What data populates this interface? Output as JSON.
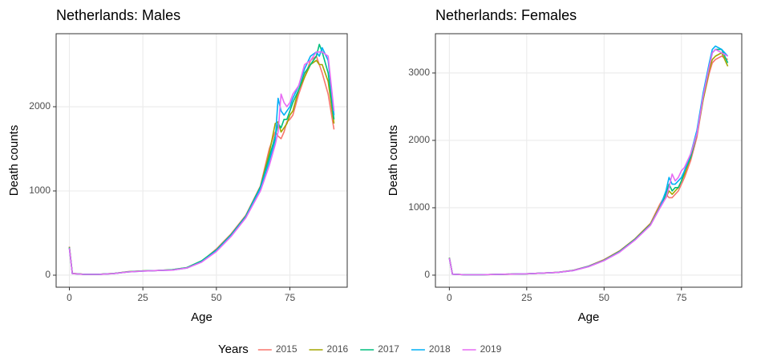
{
  "chart_data": [
    {
      "type": "line",
      "title": "Netherlands: Males",
      "x_label": "Age",
      "y_label": "Death counts",
      "legend_title": "Years",
      "x": [
        0,
        1,
        5,
        10,
        15,
        20,
        25,
        30,
        35,
        40,
        45,
        50,
        55,
        60,
        65,
        68,
        70,
        71,
        72,
        73,
        74,
        75,
        76,
        78,
        80,
        82,
        84,
        85,
        86,
        88,
        90
      ],
      "xlim": [
        -4.5,
        94.5
      ],
      "xticks": [
        0,
        25,
        50,
        75
      ],
      "ylim": [
        -143,
        2867
      ],
      "yticks": [
        0,
        1000,
        2000
      ],
      "grid": true,
      "series": [
        {
          "name": "2015",
          "color": "#F8766D",
          "values": [
            340,
            22,
            10,
            10,
            20,
            42,
            50,
            55,
            62,
            88,
            165,
            310,
            490,
            710,
            1060,
            1500,
            1700,
            1650,
            1620,
            1700,
            1820,
            1850,
            1900,
            2150,
            2350,
            2550,
            2600,
            2500,
            2400,
            2150,
            1730
          ]
        },
        {
          "name": "2016",
          "color": "#A3A500",
          "values": [
            330,
            20,
            10,
            10,
            20,
            40,
            50,
            55,
            65,
            90,
            170,
            300,
            480,
            700,
            1050,
            1450,
            1800,
            1820,
            1700,
            1750,
            1800,
            1900,
            1950,
            2200,
            2350,
            2500,
            2550,
            2500,
            2500,
            2300,
            1800
          ]
        },
        {
          "name": "2017",
          "color": "#00BF7D",
          "values": [
            330,
            20,
            10,
            10,
            20,
            40,
            50,
            55,
            65,
            90,
            170,
            300,
            480,
            700,
            1050,
            1400,
            1650,
            1800,
            1750,
            1850,
            1850,
            1950,
            2050,
            2200,
            2400,
            2500,
            2600,
            2740,
            2650,
            2400,
            1850
          ]
        },
        {
          "name": "2018",
          "color": "#00B0F6",
          "values": [
            320,
            18,
            9,
            9,
            18,
            38,
            48,
            55,
            60,
            85,
            160,
            290,
            470,
            690,
            1030,
            1350,
            1600,
            2100,
            1950,
            1900,
            1950,
            2000,
            2100,
            2250,
            2450,
            2600,
            2650,
            2600,
            2700,
            2550,
            1900
          ]
        },
        {
          "name": "2019",
          "color": "#E76BF3",
          "values": [
            320,
            18,
            9,
            9,
            18,
            38,
            48,
            55,
            60,
            85,
            155,
            280,
            460,
            680,
            1000,
            1300,
            1550,
            1700,
            2150,
            2050,
            2000,
            2050,
            2150,
            2250,
            2500,
            2550,
            2650,
            2650,
            2650,
            2600,
            1950
          ]
        }
      ]
    },
    {
      "type": "line",
      "title": "Netherlands: Females",
      "x_label": "Age",
      "y_label": "Death counts",
      "x": [
        0,
        1,
        5,
        10,
        15,
        20,
        25,
        30,
        35,
        40,
        45,
        50,
        55,
        60,
        65,
        68,
        70,
        71,
        72,
        73,
        74,
        75,
        76,
        78,
        80,
        82,
        84,
        85,
        86,
        88,
        90
      ],
      "xlim": [
        -4.5,
        94.5
      ],
      "xticks": [
        0,
        25,
        50,
        75
      ],
      "ylim": [
        -179,
        3583
      ],
      "yticks": [
        0,
        1000,
        2000,
        3000
      ],
      "grid": true,
      "series": [
        {
          "name": "2015",
          "color": "#F8766D",
          "values": [
            260,
            15,
            5,
            5,
            10,
            15,
            20,
            30,
            42,
            72,
            135,
            230,
            360,
            540,
            770,
            1050,
            1200,
            1150,
            1150,
            1200,
            1250,
            1350,
            1450,
            1700,
            2050,
            2600,
            3000,
            3150,
            3200,
            3250,
            3200
          ]
        },
        {
          "name": "2016",
          "color": "#A3A500",
          "values": [
            255,
            15,
            5,
            5,
            10,
            15,
            20,
            30,
            40,
            70,
            130,
            225,
            355,
            535,
            760,
            1020,
            1150,
            1250,
            1200,
            1250,
            1300,
            1400,
            1500,
            1750,
            2100,
            2600,
            3050,
            3200,
            3250,
            3300,
            3100
          ]
        },
        {
          "name": "2017",
          "color": "#00BF7D",
          "values": [
            255,
            15,
            5,
            5,
            10,
            15,
            20,
            30,
            40,
            70,
            130,
            220,
            350,
            530,
            750,
            1000,
            1200,
            1350,
            1250,
            1300,
            1300,
            1400,
            1550,
            1750,
            2100,
            2650,
            3100,
            3300,
            3350,
            3350,
            3150
          ]
        },
        {
          "name": "2018",
          "color": "#00B0F6",
          "values": [
            250,
            14,
            5,
            5,
            10,
            15,
            20,
            30,
            40,
            68,
            128,
            218,
            345,
            525,
            745,
            1000,
            1250,
            1450,
            1350,
            1350,
            1400,
            1450,
            1550,
            1800,
            2150,
            2700,
            3150,
            3350,
            3400,
            3350,
            3250
          ]
        },
        {
          "name": "2019",
          "color": "#E76BF3",
          "values": [
            250,
            14,
            5,
            5,
            10,
            15,
            20,
            30,
            40,
            68,
            125,
            215,
            340,
            520,
            740,
            990,
            1150,
            1300,
            1500,
            1400,
            1450,
            1550,
            1600,
            1800,
            2100,
            2650,
            3100,
            3300,
            3350,
            3300,
            3250
          ]
        }
      ]
    }
  ]
}
